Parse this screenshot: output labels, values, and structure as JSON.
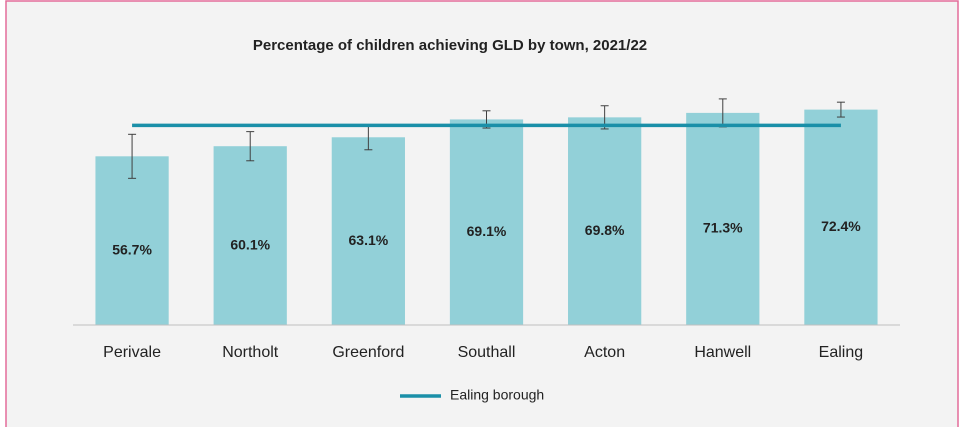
{
  "chart_data": {
    "type": "bar",
    "title": "Percentage of children achieving GLD by town, 2021/22",
    "categories": [
      "Perivale",
      "Northolt",
      "Greenford",
      "Southall",
      "Acton",
      "Hanwell",
      "Ealing"
    ],
    "values": [
      56.7,
      60.1,
      63.1,
      69.1,
      69.8,
      71.3,
      72.4
    ],
    "value_labels": [
      "56.7%",
      "60.1%",
      "63.1%",
      "69.1%",
      "69.8%",
      "71.3%",
      "72.4%"
    ],
    "errors": [
      7.4,
      4.9,
      4.2,
      2.9,
      3.9,
      4.7,
      2.5
    ],
    "color": "#92d0d8",
    "error_color": "#404040",
    "reference_line": {
      "name": "Ealing borough",
      "value": 67.1,
      "color": "#1a8fa8"
    },
    "ylim": [
      0,
      80
    ],
    "legend": "bottom"
  }
}
